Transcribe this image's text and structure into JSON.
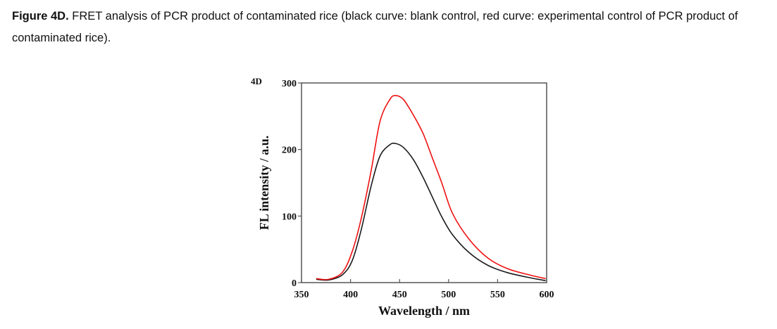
{
  "caption": {
    "label": "Figure 4D.",
    "text": "FRET analysis of PCR product of contaminated rice (black curve: blank control, red curve: experimental control of PCR product of contaminated rice)."
  },
  "chart_data": {
    "type": "line",
    "panel_label": "4D",
    "title": "",
    "xlabel": "Wavelength / nm",
    "ylabel": "FL intensity / a.u.",
    "xlim": [
      350,
      600
    ],
    "ylim": [
      0,
      300
    ],
    "xticks": [
      350,
      400,
      450,
      500,
      550,
      600
    ],
    "yticks": [
      0,
      100,
      200,
      300
    ],
    "grid": false,
    "legend": "none",
    "x": [
      365,
      378,
      392,
      402,
      411,
      421,
      430,
      440,
      446,
      454,
      464,
      474,
      483,
      493,
      504,
      521,
      540,
      560,
      584,
      599
    ],
    "series": [
      {
        "name": "blank control",
        "color": "#1a1a1a",
        "values": [
          5,
          4,
          12,
          34,
          80,
          145,
          190,
          207,
          209,
          203,
          185,
          158,
          130,
          99,
          72,
          45,
          26,
          15,
          7,
          3
        ]
      },
      {
        "name": "experimental control of PCR product of contaminated rice",
        "color": "#ee1111",
        "values": [
          6,
          5,
          16,
          48,
          97,
          168,
          242,
          275,
          281,
          275,
          252,
          224,
          189,
          150,
          104,
          65,
          37,
          21,
          11,
          6
        ]
      }
    ]
  }
}
